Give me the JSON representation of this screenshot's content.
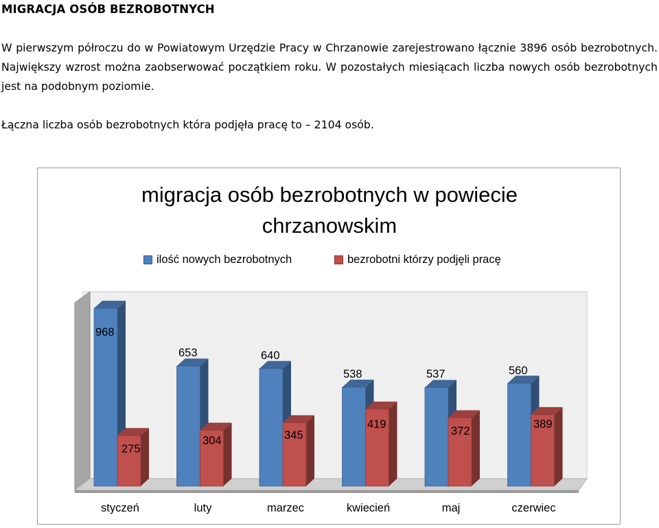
{
  "document": {
    "heading": "MIGRACJA OSÓB BEZROBOTNYCH",
    "paragraph1": "W pierwszym półroczu do w Powiatowym Urzędzie Pracy w Chrzanowie zarejestrowano łącznie 3896 osób bezrobotnych. Największy wzrost można zaobserwować początkiem roku. W pozostałych miesiącach liczba nowych osób bezrobotnych jest na podobnym poziomie.",
    "paragraph2": "Łączna liczba osób bezrobotnych która podjęła pracę to – 2104 osób."
  },
  "chart_data": {
    "type": "bar",
    "title": "migracja osób bezrobotnych w powiecie chrzanowskim",
    "title_line1": "migracja osób bezrobotnych w powiecie",
    "title_line2": "chrzanowskim",
    "categories": [
      "styczeń",
      "luty",
      "marzec",
      "kwiecień",
      "maj",
      "czerwiec"
    ],
    "series": [
      {
        "name": "ilość nowych bezrobotnych",
        "values": [
          968,
          653,
          640,
          538,
          537,
          560
        ],
        "color": "#4f81bd"
      },
      {
        "name": "bezrobotni którzy podjęli pracę",
        "values": [
          275,
          304,
          345,
          419,
          372,
          389
        ],
        "color": "#c0504d"
      }
    ],
    "ylim": [
      0,
      1000
    ],
    "legend_position": "top",
    "grid": false,
    "style": "3d-clustered-column"
  }
}
